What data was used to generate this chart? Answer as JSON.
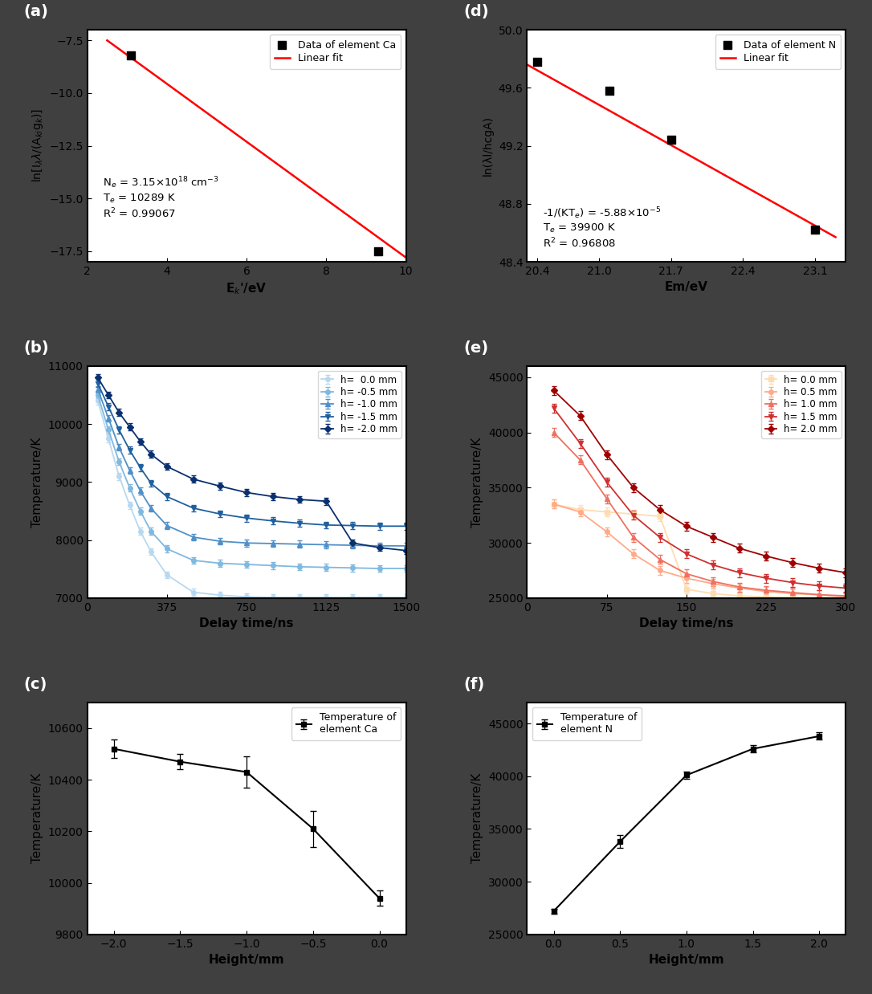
{
  "panel_a": {
    "scatter_x": [
      3.1,
      9.3
    ],
    "scatter_y": [
      -8.2,
      -17.5
    ],
    "fit_x": [
      2.5,
      10.0
    ],
    "fit_y": [
      -7.5,
      -17.8
    ],
    "xlabel": "E$_{k}$'/eV",
    "ylabel": "ln[I$_{\\lambda}$$\\lambda$/(A$_{ki}$g$_k$)]",
    "xlim": [
      2,
      10
    ],
    "ylim": [
      -18,
      -7
    ],
    "yticks": [
      -17.5,
      -15.0,
      -12.5,
      -10.0,
      -7.5
    ],
    "xticks": [
      2,
      4,
      6,
      8,
      10
    ],
    "annotation": "N$_e$ = 3.15×10$^{18}$ cm$^{-3}$\nT$_e$ = 10289 K\nR$^2$ = 0.99067",
    "legend_label_scatter": "Data of element Ca",
    "legend_label_fit": "Linear fit"
  },
  "panel_d": {
    "scatter_x": [
      20.4,
      21.1,
      21.7,
      23.1
    ],
    "scatter_y": [
      49.78,
      49.58,
      49.24,
      48.62
    ],
    "fit_x": [
      20.3,
      23.3
    ],
    "fit_y": [
      49.76,
      48.57
    ],
    "xlabel": "Em/eV",
    "ylabel": "ln(λl/hcgA)",
    "xlim": [
      20.3,
      23.4
    ],
    "ylim": [
      48.4,
      50.0
    ],
    "yticks": [
      48.4,
      48.8,
      49.2,
      49.6,
      50.0
    ],
    "xticks": [
      20.4,
      21.0,
      21.7,
      22.4,
      23.1
    ],
    "annotation": "-1/(KT$_e$) = -5.88×10$^{-5}$\nT$_e$ = 39900 K\nR$^2$ = 0.96808",
    "legend_label_scatter": "Data of element N",
    "legend_label_fit": "Linear fit"
  },
  "panel_b": {
    "delay_times": [
      50,
      100,
      150,
      200,
      250,
      300,
      375,
      500,
      625,
      750,
      875,
      1000,
      1125,
      1250,
      1375,
      1500
    ],
    "series": [
      {
        "label": "h=  0.0 mm",
        "color": "#b8d8ef",
        "marker": "o",
        "data": [
          10400,
          9750,
          9100,
          8600,
          8150,
          7800,
          7400,
          7100,
          7050,
          7020,
          7010,
          7010,
          7010,
          7010,
          7010,
          7010
        ]
      },
      {
        "label": "h= -0.5 mm",
        "color": "#7fb8e0",
        "marker": "o",
        "data": [
          10500,
          9900,
          9350,
          8900,
          8500,
          8150,
          7850,
          7650,
          7600,
          7580,
          7560,
          7540,
          7530,
          7520,
          7510,
          7510
        ]
      },
      {
        "label": "h= -1.0 mm",
        "color": "#5090c8",
        "marker": "^",
        "data": [
          10600,
          10100,
          9600,
          9200,
          8850,
          8550,
          8250,
          8050,
          7980,
          7950,
          7940,
          7930,
          7920,
          7910,
          7900,
          7900
        ]
      },
      {
        "label": "h= -1.5 mm",
        "color": "#2060a0",
        "marker": "v",
        "data": [
          10700,
          10300,
          9900,
          9550,
          9250,
          8980,
          8750,
          8550,
          8450,
          8380,
          8330,
          8290,
          8260,
          8250,
          8240,
          8240
        ]
      },
      {
        "label": "h= -2.0 mm",
        "color": "#0a3070",
        "marker": "D",
        "data": [
          10800,
          10500,
          10200,
          9950,
          9700,
          9480,
          9270,
          9050,
          8930,
          8820,
          8750,
          8700,
          8670,
          7950,
          7870,
          7820
        ]
      }
    ],
    "xlabel": "Delay time/ns",
    "ylabel": "Temperature/K",
    "xlim": [
      0,
      1500
    ],
    "ylim": [
      7000,
      11000
    ],
    "xticks": [
      0,
      375,
      750,
      1125,
      1500
    ],
    "yticks": [
      7000,
      8000,
      9000,
      10000,
      11000
    ]
  },
  "panel_e": {
    "delay_times": [
      25,
      50,
      75,
      100,
      125,
      150,
      175,
      200,
      225,
      250,
      275,
      300
    ],
    "series": [
      {
        "label": "h= 0.0 mm",
        "color": "#ffdcb0",
        "marker": "s",
        "data": [
          33500,
          33000,
          32800,
          32600,
          32400,
          25800,
          25400,
          25200,
          25100,
          25050,
          25020,
          25000
        ]
      },
      {
        "label": "h= 0.5 mm",
        "color": "#ffaa88",
        "marker": "o",
        "data": [
          33500,
          32800,
          31000,
          29000,
          27500,
          26800,
          26300,
          25900,
          25600,
          25400,
          25300,
          25100
        ]
      },
      {
        "label": "h= 1.0 mm",
        "color": "#f07060",
        "marker": "^",
        "data": [
          40000,
          37500,
          34000,
          30500,
          28500,
          27200,
          26500,
          26000,
          25700,
          25500,
          25300,
          25200
        ]
      },
      {
        "label": "h= 1.5 mm",
        "color": "#d03030",
        "marker": "v",
        "data": [
          42200,
          39000,
          35500,
          32500,
          30500,
          29000,
          28000,
          27300,
          26800,
          26400,
          26100,
          25900
        ]
      },
      {
        "label": "h= 2.0 mm",
        "color": "#a00000",
        "marker": "D",
        "data": [
          43800,
          41500,
          38000,
          35000,
          33000,
          31500,
          30500,
          29500,
          28800,
          28200,
          27700,
          27300
        ]
      }
    ],
    "xlabel": "Delay time/ns",
    "ylabel": "Temperature/K",
    "xlim": [
      0,
      300
    ],
    "ylim": [
      25000,
      46000
    ],
    "xticks": [
      0,
      75,
      150,
      225,
      300
    ],
    "yticks": [
      25000,
      30000,
      35000,
      40000,
      45000
    ]
  },
  "panel_c": {
    "heights": [
      -2.0,
      -1.5,
      -1.0,
      -0.5,
      0.0
    ],
    "temps": [
      10520,
      10470,
      10430,
      10210,
      9940
    ],
    "errors": [
      35,
      30,
      60,
      70,
      30
    ],
    "xlabel": "Height/mm",
    "ylabel": "Temperature/K",
    "xlim": [
      -2.2,
      0.2
    ],
    "ylim": [
      9800,
      10700
    ],
    "xticks": [
      -2.0,
      -1.5,
      -1.0,
      -0.5,
      0.0
    ],
    "yticks": [
      9800,
      10000,
      10200,
      10400,
      10600
    ],
    "legend_label": "Temperature of\nelement Ca"
  },
  "panel_f": {
    "heights": [
      0.0,
      0.5,
      1.0,
      1.5,
      2.0
    ],
    "temps": [
      27200,
      33800,
      40100,
      42600,
      43800
    ],
    "errors": [
      250,
      600,
      350,
      350,
      350
    ],
    "xlabel": "Height/mm",
    "ylabel": "Temperature/K",
    "xlim": [
      -0.2,
      2.2
    ],
    "ylim": [
      25000,
      47000
    ],
    "xticks": [
      0.0,
      0.5,
      1.0,
      1.5,
      2.0
    ],
    "yticks": [
      25000,
      30000,
      35000,
      40000,
      45000
    ],
    "legend_label": "Temperature of\nelement N"
  },
  "scatter_color": "#000000",
  "fit_color": "#ff0000",
  "bg_color": "#404040",
  "panel_bg": "#ffffff"
}
